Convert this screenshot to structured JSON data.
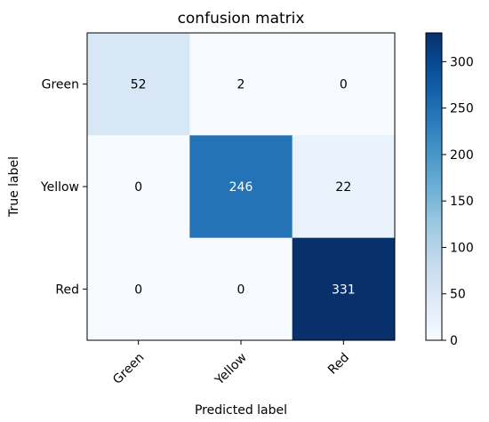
{
  "chart_data": {
    "type": "heatmap",
    "title": "confusion matrix",
    "xlabel": "Predicted label",
    "ylabel": "True label",
    "x_categories": [
      "Green",
      "Yellow",
      "Red"
    ],
    "y_categories": [
      "Green",
      "Yellow",
      "Red"
    ],
    "values": [
      [
        52,
        2,
        0
      ],
      [
        0,
        246,
        22
      ],
      [
        0,
        0,
        331
      ]
    ],
    "colormap": "Blues",
    "colorbar": {
      "range": [
        0,
        331
      ],
      "ticks": [
        0,
        50,
        100,
        150,
        200,
        250,
        300
      ],
      "tick_labels": [
        "0",
        "50",
        "100",
        "150",
        "200",
        "250",
        "300"
      ]
    },
    "grid": false,
    "text_color_dark": "#000000",
    "text_color_light": "#ffffff"
  }
}
